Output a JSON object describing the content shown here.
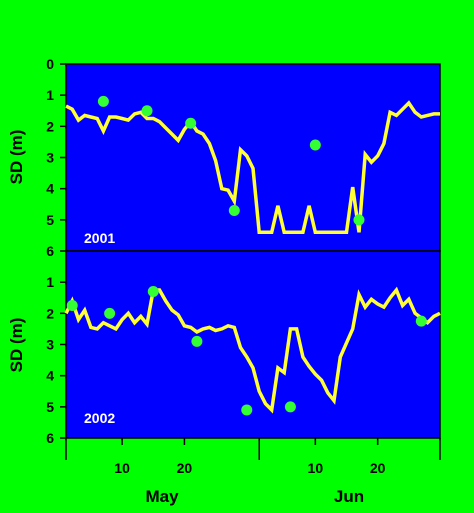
{
  "chart_data": [
    {
      "type": "line",
      "panel_label": "2001",
      "ylabel": "SD (m)",
      "ylim": [
        0,
        6
      ],
      "y_inverted": true,
      "yticks": [
        "0",
        "1",
        "2",
        "3",
        "4",
        "5",
        "6"
      ],
      "xlim": [
        1,
        61
      ],
      "x_unit": "day of season (May 1 = 1, Jun 1 = 32)",
      "grid": false,
      "colors": {
        "background": "#00ff00",
        "plot_area": "#0000ff",
        "line": "#ffff33",
        "markers": "#33ff33"
      },
      "series": [
        {
          "type": "line",
          "x": [
            1,
            2,
            3,
            4,
            5,
            6,
            7,
            8,
            9,
            10,
            11,
            12,
            13,
            14,
            15,
            16,
            17,
            18,
            19,
            20,
            21,
            22,
            23,
            24,
            25,
            26,
            27,
            28,
            29,
            30,
            31,
            32,
            33,
            34,
            35,
            36,
            37,
            38,
            39,
            40,
            41,
            42,
            43,
            44,
            45,
            46,
            47,
            48,
            49,
            50,
            51,
            52,
            53,
            54,
            55,
            56,
            57,
            58,
            59,
            60,
            61
          ],
          "values": [
            1.35,
            1.45,
            1.8,
            1.65,
            1.7,
            1.75,
            2.15,
            1.7,
            1.7,
            1.75,
            1.8,
            1.6,
            1.55,
            1.75,
            1.75,
            1.85,
            2.05,
            2.25,
            2.45,
            2.1,
            1.85,
            2.15,
            2.25,
            2.55,
            3.1,
            4.0,
            4.05,
            4.4,
            2.75,
            2.95,
            3.35,
            5.4,
            5.4,
            5.4,
            4.55,
            5.4,
            5.4,
            5.4,
            5.4,
            4.55,
            5.4,
            5.4,
            5.4,
            5.4,
            5.4,
            5.4,
            3.95,
            5.4,
            2.9,
            3.15,
            2.95,
            2.55,
            1.55,
            1.65,
            1.45,
            1.25,
            1.55,
            1.7,
            1.65,
            1.6,
            1.6
          ]
        },
        {
          "type": "scatter",
          "x": [
            7,
            14,
            21,
            28,
            41,
            48
          ],
          "values": [
            1.2,
            1.5,
            1.9,
            4.7,
            2.6,
            5.0
          ]
        }
      ]
    },
    {
      "type": "line",
      "panel_label": "2002",
      "ylabel": "SD (m)",
      "ylim": [
        0,
        6
      ],
      "y_inverted": true,
      "yticks": [
        "1",
        "2",
        "3",
        "4",
        "5",
        "6"
      ],
      "xlim": [
        1,
        61
      ],
      "xticks": [
        "10",
        "20",
        "10",
        "20"
      ],
      "xlabel_months": [
        "May",
        "Jun"
      ],
      "x_unit": "day of season (May 1 = 1, Jun 1 = 32)",
      "grid": false,
      "colors": {
        "background": "#00ff00",
        "plot_area": "#0000ff",
        "line": "#ffff33",
        "markers": "#33ff33"
      },
      "series": [
        {
          "type": "line",
          "x": [
            1,
            2,
            3,
            4,
            5,
            6,
            7,
            8,
            9,
            10,
            11,
            12,
            13,
            14,
            15,
            16,
            17,
            18,
            19,
            20,
            21,
            22,
            23,
            24,
            25,
            26,
            27,
            28,
            29,
            30,
            31,
            32,
            33,
            34,
            35,
            36,
            37,
            38,
            39,
            40,
            41,
            42,
            43,
            44,
            45,
            46,
            47,
            48,
            49,
            50,
            51,
            52,
            53,
            54,
            55,
            56,
            57,
            58,
            59,
            60,
            61
          ],
          "values": [
            2.0,
            1.6,
            2.2,
            1.9,
            2.45,
            2.5,
            2.3,
            2.4,
            2.5,
            2.2,
            2.0,
            2.3,
            2.1,
            2.35,
            1.25,
            1.25,
            1.6,
            1.9,
            2.05,
            2.4,
            2.45,
            2.6,
            2.5,
            2.45,
            2.55,
            2.5,
            2.4,
            2.45,
            3.1,
            3.4,
            3.75,
            4.5,
            4.9,
            5.1,
            3.75,
            3.9,
            2.5,
            2.5,
            3.4,
            3.7,
            3.95,
            4.15,
            4.55,
            4.8,
            3.4,
            2.95,
            2.5,
            1.4,
            1.8,
            1.55,
            1.7,
            1.8,
            1.5,
            1.25,
            1.75,
            1.55,
            2.0,
            2.15,
            2.3,
            2.1,
            2.0
          ]
        },
        {
          "type": "scatter",
          "x": [
            2,
            8,
            15,
            22,
            30,
            37,
            58
          ],
          "values": [
            1.75,
            2.0,
            1.3,
            2.9,
            5.1,
            5.0,
            2.25
          ]
        }
      ]
    }
  ]
}
